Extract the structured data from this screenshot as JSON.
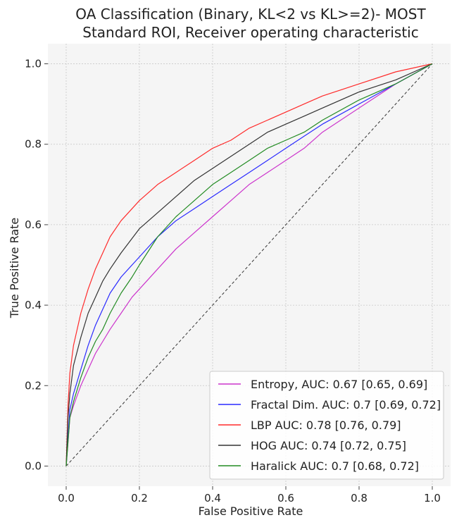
{
  "chart_data": {
    "type": "line",
    "title": [
      "OA Classification (Binary, KL<2 vs KL>=2)- MOST",
      "Standard ROI, Receiver operating characteristic"
    ],
    "xlabel": "False Positive Rate",
    "ylabel": "True Positive Rate",
    "xlim": [
      -0.05,
      1.05
    ],
    "ylim": [
      -0.05,
      1.05
    ],
    "xticks": [
      "0.0",
      "0.2",
      "0.4",
      "0.6",
      "0.8",
      "1.0"
    ],
    "yticks": [
      "0.0",
      "0.2",
      "0.4",
      "0.6",
      "0.8",
      "1.0"
    ],
    "grid": true,
    "legend_position": "lower-right",
    "reference_line": {
      "x": [
        0,
        1
      ],
      "y": [
        0,
        1
      ],
      "style": "dashed",
      "color": "#333333"
    },
    "series": [
      {
        "name": "Entropy, AUC: 0.67 [0.65, 0.69]",
        "color": "#cc33cc",
        "x": [
          0,
          0.01,
          0.02,
          0.04,
          0.06,
          0.08,
          0.1,
          0.12,
          0.15,
          0.18,
          0.2,
          0.25,
          0.3,
          0.35,
          0.4,
          0.45,
          0.5,
          0.55,
          0.6,
          0.65,
          0.7,
          0.8,
          0.9,
          1.0
        ],
        "y": [
          0,
          0.12,
          0.15,
          0.2,
          0.24,
          0.28,
          0.31,
          0.34,
          0.38,
          0.42,
          0.44,
          0.49,
          0.54,
          0.58,
          0.62,
          0.66,
          0.7,
          0.73,
          0.76,
          0.79,
          0.83,
          0.89,
          0.95,
          1.0
        ]
      },
      {
        "name": "Fractal Dim. AUC: 0.7 [0.69, 0.72]",
        "color": "#2a2aff",
        "x": [
          0,
          0.01,
          0.02,
          0.04,
          0.06,
          0.08,
          0.1,
          0.12,
          0.15,
          0.18,
          0.2,
          0.25,
          0.3,
          0.35,
          0.4,
          0.45,
          0.5,
          0.55,
          0.6,
          0.65,
          0.7,
          0.8,
          0.9,
          1.0
        ],
        "y": [
          0,
          0.14,
          0.18,
          0.24,
          0.3,
          0.35,
          0.39,
          0.43,
          0.47,
          0.5,
          0.52,
          0.57,
          0.61,
          0.64,
          0.67,
          0.7,
          0.73,
          0.76,
          0.79,
          0.82,
          0.85,
          0.9,
          0.95,
          1.0
        ]
      },
      {
        "name": "LBP AUC: 0.78 [0.76, 0.79]",
        "color": "#ff2a2a",
        "x": [
          0,
          0.005,
          0.01,
          0.02,
          0.04,
          0.06,
          0.08,
          0.1,
          0.12,
          0.15,
          0.2,
          0.25,
          0.3,
          0.35,
          0.4,
          0.45,
          0.5,
          0.55,
          0.6,
          0.65,
          0.7,
          0.8,
          0.9,
          1.0
        ],
        "y": [
          0,
          0.15,
          0.23,
          0.3,
          0.38,
          0.44,
          0.49,
          0.53,
          0.57,
          0.61,
          0.66,
          0.7,
          0.73,
          0.76,
          0.79,
          0.81,
          0.84,
          0.86,
          0.88,
          0.9,
          0.92,
          0.95,
          0.98,
          1.0
        ]
      },
      {
        "name": "HOG AUC: 0.74 [0.72, 0.75]",
        "color": "#333333",
        "x": [
          0,
          0.005,
          0.01,
          0.02,
          0.04,
          0.06,
          0.08,
          0.1,
          0.12,
          0.15,
          0.2,
          0.25,
          0.3,
          0.35,
          0.4,
          0.45,
          0.5,
          0.55,
          0.6,
          0.65,
          0.7,
          0.8,
          0.9,
          1.0
        ],
        "y": [
          0,
          0.12,
          0.18,
          0.25,
          0.32,
          0.38,
          0.42,
          0.46,
          0.49,
          0.53,
          0.59,
          0.63,
          0.67,
          0.71,
          0.74,
          0.77,
          0.8,
          0.83,
          0.85,
          0.87,
          0.89,
          0.93,
          0.96,
          1.0
        ]
      },
      {
        "name": "Haralick AUC: 0.7 [0.68, 0.72]",
        "color": "#228b22",
        "x": [
          0,
          0.01,
          0.02,
          0.04,
          0.06,
          0.08,
          0.1,
          0.12,
          0.15,
          0.18,
          0.2,
          0.25,
          0.3,
          0.35,
          0.4,
          0.45,
          0.5,
          0.55,
          0.6,
          0.65,
          0.7,
          0.8,
          0.9,
          1.0
        ],
        "y": [
          0,
          0.12,
          0.16,
          0.22,
          0.27,
          0.31,
          0.34,
          0.38,
          0.43,
          0.47,
          0.5,
          0.57,
          0.62,
          0.66,
          0.7,
          0.73,
          0.76,
          0.79,
          0.81,
          0.83,
          0.86,
          0.91,
          0.95,
          1.0
        ]
      }
    ]
  }
}
